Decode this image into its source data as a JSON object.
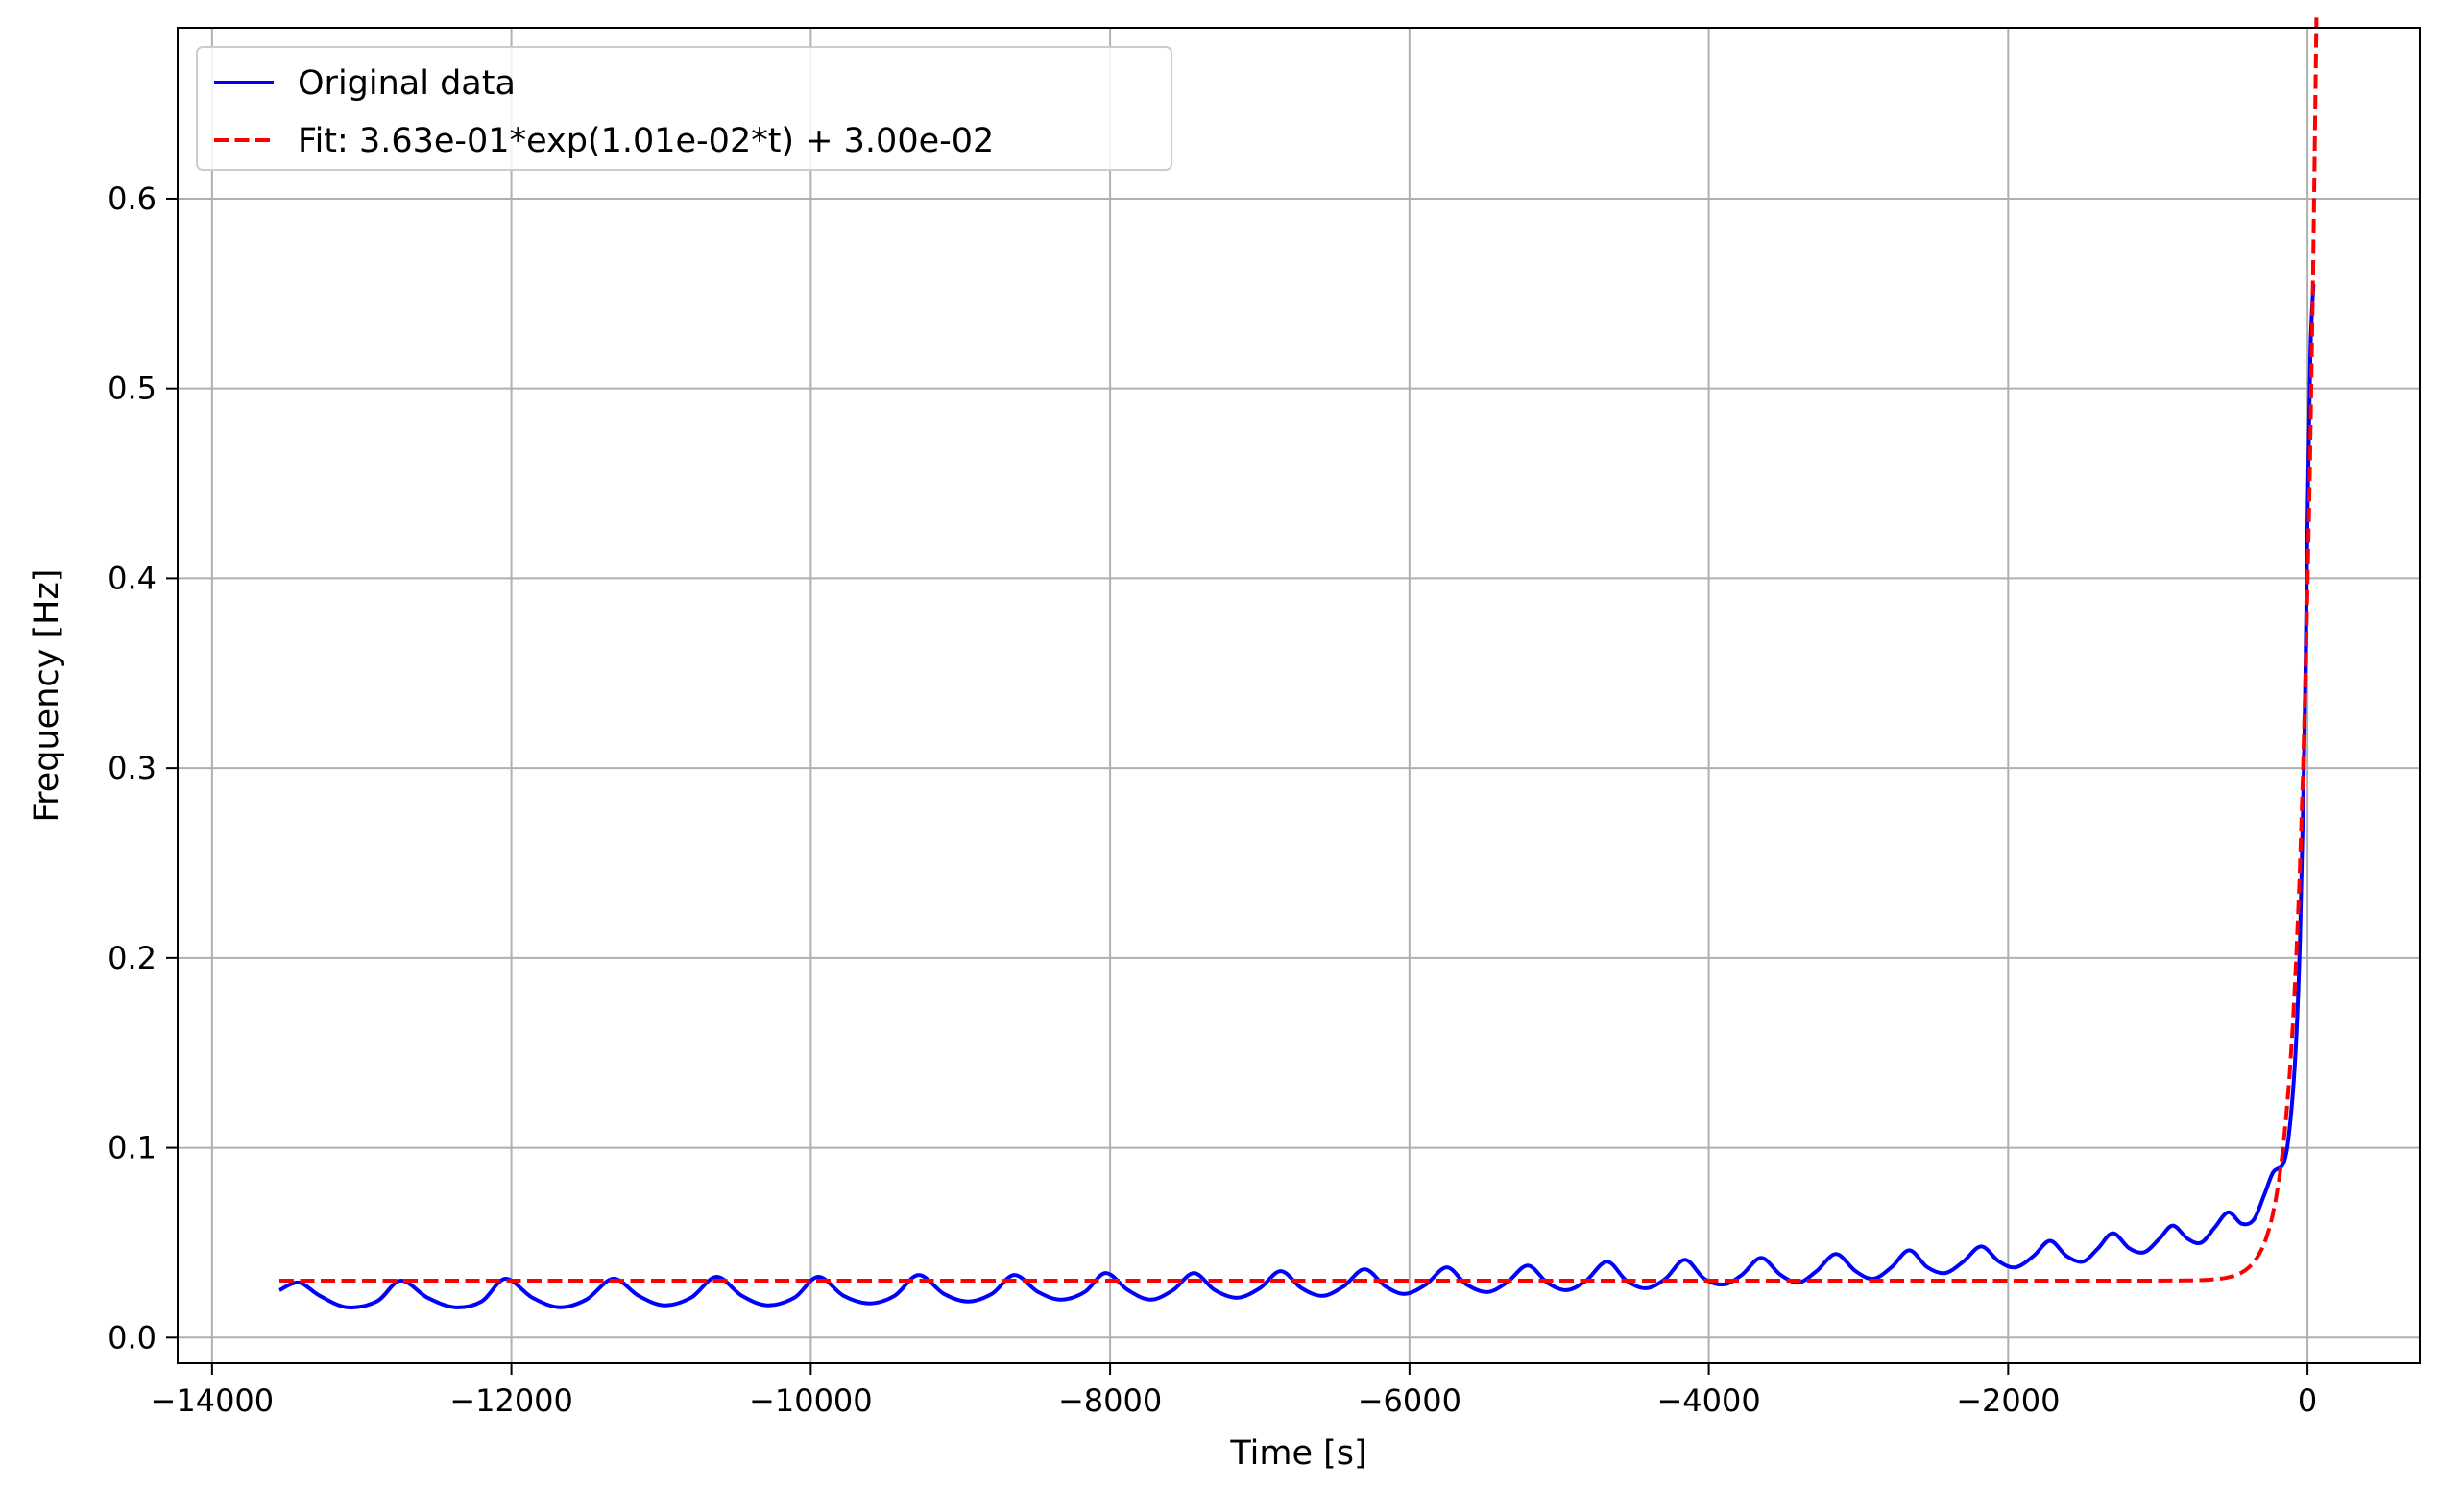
{
  "chart_data": {
    "type": "line",
    "title": "",
    "xlabel": "Time [s]",
    "ylabel": "Frequency [Hz]",
    "xlim": [
      -14230,
      750
    ],
    "ylim": [
      -0.0135,
      0.69
    ],
    "xticks": [
      -14000,
      -12000,
      -10000,
      -8000,
      -6000,
      -4000,
      -2000,
      0
    ],
    "xtick_labels": [
      "−14000",
      "−12000",
      "−10000",
      "−8000",
      "−6000",
      "−4000",
      "−2000",
      "0"
    ],
    "yticks": [
      0.0,
      0.1,
      0.2,
      0.3,
      0.4,
      0.5,
      0.6
    ],
    "ytick_labels": [
      "0.0",
      "0.1",
      "0.2",
      "0.3",
      "0.4",
      "0.5",
      "0.6"
    ],
    "grid": true,
    "legend_position": "top-left",
    "series": [
      {
        "name": "Original data",
        "color": "#0000ff",
        "style": "solid",
        "points": [
          [
            -13550,
            0.025
          ],
          [
            -13420,
            0.029
          ],
          [
            -13280,
            0.022
          ],
          [
            -13100,
            0.016
          ],
          [
            -12900,
            0.019
          ],
          [
            -12740,
            0.03
          ],
          [
            -12560,
            0.021
          ],
          [
            -12380,
            0.016
          ],
          [
            -12200,
            0.019
          ],
          [
            -12040,
            0.031
          ],
          [
            -11860,
            0.021
          ],
          [
            -11680,
            0.016
          ],
          [
            -11500,
            0.02
          ],
          [
            -11320,
            0.031
          ],
          [
            -11150,
            0.022
          ],
          [
            -10980,
            0.017
          ],
          [
            -10800,
            0.021
          ],
          [
            -10630,
            0.032
          ],
          [
            -10460,
            0.022
          ],
          [
            -10290,
            0.017
          ],
          [
            -10110,
            0.021
          ],
          [
            -9950,
            0.032
          ],
          [
            -9780,
            0.022
          ],
          [
            -9610,
            0.018
          ],
          [
            -9440,
            0.022
          ],
          [
            -9280,
            0.033
          ],
          [
            -9110,
            0.023
          ],
          [
            -8950,
            0.019
          ],
          [
            -8790,
            0.023
          ],
          [
            -8640,
            0.033
          ],
          [
            -8480,
            0.024
          ],
          [
            -8330,
            0.02
          ],
          [
            -8170,
            0.024
          ],
          [
            -8030,
            0.034
          ],
          [
            -7880,
            0.025
          ],
          [
            -7730,
            0.02
          ],
          [
            -7580,
            0.025
          ],
          [
            -7440,
            0.034
          ],
          [
            -7300,
            0.025
          ],
          [
            -7150,
            0.021
          ],
          [
            -7000,
            0.026
          ],
          [
            -6860,
            0.035
          ],
          [
            -6720,
            0.026
          ],
          [
            -6580,
            0.022
          ],
          [
            -6440,
            0.027
          ],
          [
            -6300,
            0.036
          ],
          [
            -6160,
            0.027
          ],
          [
            -6030,
            0.023
          ],
          [
            -5890,
            0.028
          ],
          [
            -5750,
            0.037
          ],
          [
            -5620,
            0.028
          ],
          [
            -5480,
            0.024
          ],
          [
            -5350,
            0.029
          ],
          [
            -5210,
            0.038
          ],
          [
            -5080,
            0.029
          ],
          [
            -4950,
            0.025
          ],
          [
            -4820,
            0.03
          ],
          [
            -4680,
            0.04
          ],
          [
            -4550,
            0.03
          ],
          [
            -4420,
            0.026
          ],
          [
            -4290,
            0.031
          ],
          [
            -4160,
            0.041
          ],
          [
            -4030,
            0.031
          ],
          [
            -3900,
            0.028
          ],
          [
            -3780,
            0.033
          ],
          [
            -3650,
            0.042
          ],
          [
            -3520,
            0.033
          ],
          [
            -3400,
            0.029
          ],
          [
            -3280,
            0.035
          ],
          [
            -3150,
            0.044
          ],
          [
            -3020,
            0.035
          ],
          [
            -2900,
            0.031
          ],
          [
            -2780,
            0.037
          ],
          [
            -2660,
            0.046
          ],
          [
            -2540,
            0.037
          ],
          [
            -2420,
            0.034
          ],
          [
            -2300,
            0.04
          ],
          [
            -2180,
            0.048
          ],
          [
            -2060,
            0.04
          ],
          [
            -1950,
            0.037
          ],
          [
            -1830,
            0.043
          ],
          [
            -1720,
            0.051
          ],
          [
            -1610,
            0.043
          ],
          [
            -1500,
            0.04
          ],
          [
            -1400,
            0.047
          ],
          [
            -1300,
            0.055
          ],
          [
            -1190,
            0.047
          ],
          [
            -1090,
            0.045
          ],
          [
            -990,
            0.052
          ],
          [
            -900,
            0.059
          ],
          [
            -800,
            0.052
          ],
          [
            -710,
            0.05
          ],
          [
            -620,
            0.058
          ],
          [
            -530,
            0.066
          ],
          [
            -440,
            0.06
          ],
          [
            -360,
            0.062
          ],
          [
            -290,
            0.075
          ],
          [
            -230,
            0.087
          ],
          [
            -160,
            0.092
          ],
          [
            -120,
            0.11
          ],
          [
            -80,
            0.15
          ],
          [
            -50,
            0.21
          ],
          [
            -20,
            0.32
          ],
          [
            0,
            0.43
          ],
          [
            20,
            0.52
          ],
          [
            40,
            0.555
          ]
        ]
      },
      {
        "name": "Fit: 3.63e-01*exp(1.01e-02*t) + 3.00e-02",
        "color": "#ff0000",
        "style": "dashed",
        "model": {
          "a": 0.363,
          "b": 0.0101,
          "c": 0.03,
          "t_start": -13550,
          "t_end": 60
        }
      }
    ]
  }
}
